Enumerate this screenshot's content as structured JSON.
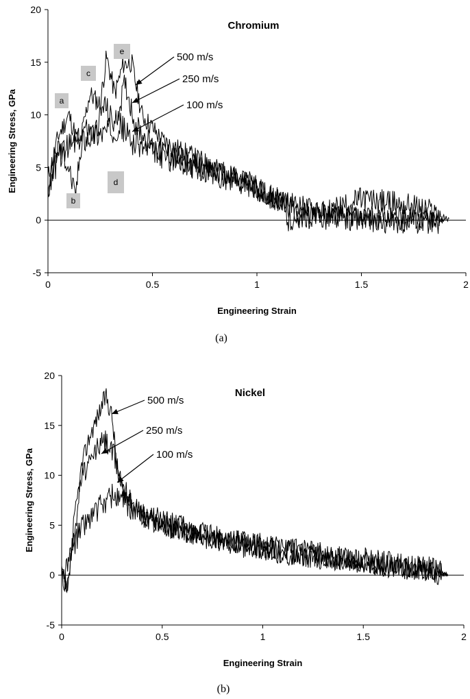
{
  "chart_data": [
    {
      "type": "line",
      "title": "Chromium",
      "xlabel": "Engineering Strain",
      "ylabel": "Engineering Stress, GPa",
      "xlim": [
        0,
        2
      ],
      "ylim": [
        -5,
        20
      ],
      "xticks": [
        "0",
        "0.5",
        "1",
        "1.5",
        "2"
      ],
      "yticks": [
        "-5",
        "0",
        "5",
        "10",
        "15",
        "20"
      ],
      "caption": "(a)",
      "grid": false,
      "series": [
        {
          "name": "500 m/s",
          "x": [
            0,
            0.05,
            0.1,
            0.15,
            0.2,
            0.25,
            0.28,
            0.32,
            0.36,
            0.4,
            0.45,
            0.55,
            0.7,
            0.85,
            1.0,
            1.1,
            1.2,
            1.4,
            1.6,
            1.8,
            1.9
          ],
          "y": [
            4,
            8,
            10,
            7,
            12,
            11,
            15.5,
            12,
            14.8,
            15,
            10,
            7.5,
            6,
            4.5,
            3,
            2,
            1.5,
            0.3,
            0,
            0,
            0
          ]
        },
        {
          "name": "250 m/s",
          "x": [
            0,
            0.05,
            0.1,
            0.13,
            0.17,
            0.22,
            0.27,
            0.32,
            0.37,
            0.42,
            0.5,
            0.65,
            0.8,
            0.95,
            1.1,
            1.2,
            1.3,
            1.5,
            1.7,
            1.85,
            1.92
          ],
          "y": [
            3,
            7,
            5,
            2,
            9,
            8,
            11,
            9,
            13,
            9,
            7,
            5.5,
            4.5,
            3.5,
            2,
            0.5,
            0.5,
            2,
            1.5,
            0.8,
            0
          ]
        },
        {
          "name": "100 m/s",
          "x": [
            0,
            0.05,
            0.1,
            0.15,
            0.2,
            0.3,
            0.35,
            0.4,
            0.5,
            0.65,
            0.8,
            0.95,
            1.1,
            1.15,
            1.2,
            1.4,
            1.6,
            1.75,
            1.85,
            1.9
          ],
          "y": [
            3,
            6,
            7,
            7.5,
            8,
            8.5,
            9,
            7.5,
            6.5,
            5.5,
            4.5,
            3.5,
            2,
            0,
            0.5,
            0.3,
            0,
            0,
            0,
            0
          ]
        }
      ],
      "annotations": [
        "a",
        "b",
        "c",
        "d",
        "e"
      ]
    },
    {
      "type": "line",
      "title": "Nickel",
      "xlabel": "Engineering Strain",
      "ylabel": "Engineering Stress, GPa",
      "xlim": [
        0,
        2
      ],
      "ylim": [
        -5,
        20
      ],
      "xticks": [
        "0",
        "0.5",
        "1",
        "1.5",
        "2"
      ],
      "yticks": [
        "-5",
        "0",
        "5",
        "10",
        "15",
        "20"
      ],
      "caption": "(b)",
      "grid": false,
      "series": [
        {
          "name": "500 m/s",
          "x": [
            0,
            0.03,
            0.06,
            0.1,
            0.14,
            0.18,
            0.22,
            0.25,
            0.28,
            0.33,
            0.4,
            0.55,
            0.7,
            0.9,
            1.1,
            1.3,
            1.5,
            1.7,
            1.85,
            1.92
          ],
          "y": [
            0,
            -2,
            5,
            11,
            14,
            16,
            18,
            16,
            10,
            8,
            6,
            4.5,
            4,
            3,
            2,
            1.5,
            1,
            0.8,
            0.3,
            0
          ]
        },
        {
          "name": "250 m/s",
          "x": [
            0,
            0.03,
            0.06,
            0.1,
            0.14,
            0.18,
            0.22,
            0.26,
            0.3,
            0.35,
            0.45,
            0.6,
            0.8,
            1.0,
            1.2,
            1.4,
            1.6,
            1.8,
            1.92
          ],
          "y": [
            0,
            -1,
            4,
            10,
            11,
            13,
            13.5,
            12,
            9,
            7,
            5.5,
            4.5,
            3.5,
            3,
            2,
            1.5,
            1,
            0.5,
            0
          ]
        },
        {
          "name": "100 m/s",
          "x": [
            0,
            0.03,
            0.06,
            0.1,
            0.15,
            0.2,
            0.25,
            0.3,
            0.4,
            0.55,
            0.7,
            0.9,
            1.1,
            1.3,
            1.5,
            1.7,
            1.85,
            1.92
          ],
          "y": [
            0,
            1,
            3,
            5,
            6,
            7,
            8,
            7.5,
            6,
            5,
            4,
            3,
            2.5,
            2,
            1.5,
            1,
            0.5,
            0
          ]
        }
      ],
      "annotations": []
    }
  ]
}
